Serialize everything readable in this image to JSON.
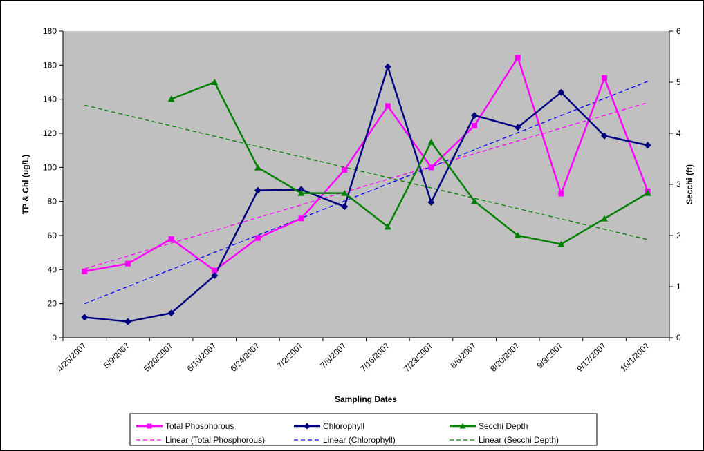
{
  "chart_data": {
    "type": "line",
    "categories": [
      "4/25/2007",
      "5/9/2007",
      "5/20/2007",
      "6/10/2007",
      "6/24/2007",
      "7/2/2007",
      "7/8/2007",
      "7/16/2007",
      "7/23/2007",
      "8/6/2007",
      "8/20/2007",
      "9/3/2007",
      "9/17/2007",
      "10/1/2007"
    ],
    "xlabel": "Sampling Dates",
    "ylabel": "TP & Chl (ug/L)",
    "y2label": "Secchi (ft)",
    "ylim": [
      0,
      180
    ],
    "y2lim": [
      0,
      6
    ],
    "yticks": [
      "0",
      "20",
      "40",
      "60",
      "80",
      "100",
      "120",
      "140",
      "160",
      "180"
    ],
    "y2ticks": [
      "0",
      "1",
      "2",
      "3",
      "4",
      "5",
      "6"
    ],
    "plot_background": "#c0c0c0",
    "grid": false,
    "legend_position": "bottom",
    "series": [
      {
        "name": "Total Phosphorous",
        "axis": "left",
        "color": "#ff00ff",
        "marker": "square",
        "values": [
          39,
          43.5,
          58,
          39.5,
          58.5,
          70,
          98.5,
          136,
          100,
          124.5,
          164.5,
          84.5,
          152.5,
          86
        ]
      },
      {
        "name": "Chlorophyll",
        "axis": "left",
        "color": "#000080",
        "marker": "diamond",
        "values": [
          12,
          9.5,
          14.5,
          36.5,
          86.5,
          87,
          77,
          159,
          79.5,
          130.5,
          123.5,
          144,
          118.5,
          113
        ]
      },
      {
        "name": "Secchi Depth",
        "axis": "right",
        "color": "#008000",
        "marker": "triangle",
        "values": [
          null,
          null,
          4.67,
          5,
          3.33,
          2.83,
          2.83,
          2.17,
          3.83,
          2.67,
          2,
          1.83,
          2.33,
          2.83
        ]
      }
    ],
    "trendlines": [
      {
        "name": "Linear (Total Phosphorous)",
        "axis": "left",
        "color": "#ff00ff",
        "values": [
          40.5,
          138
        ]
      },
      {
        "name": "Linear (Chlorophyll)",
        "axis": "left",
        "color": "#0000ff",
        "values": [
          20,
          150.5
        ]
      },
      {
        "name": "Linear (Secchi Depth)",
        "axis": "right",
        "color": "#008000",
        "values": [
          4.55,
          1.92
        ]
      }
    ]
  }
}
